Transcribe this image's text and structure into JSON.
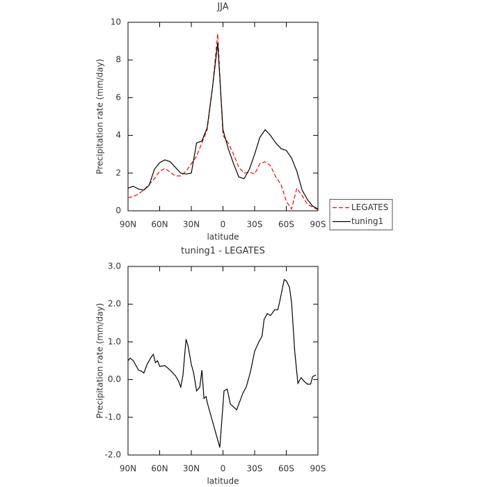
{
  "chart_data": [
    {
      "type": "line",
      "title": "JJA",
      "xlabel": "latitude",
      "ylabel": "Precipitation rate (mm/day)",
      "x": [
        90,
        85,
        80,
        75,
        70,
        65,
        60,
        55,
        50,
        45,
        40,
        35,
        30,
        25,
        20,
        15,
        10,
        5,
        0,
        -5,
        -10,
        -15,
        -20,
        -25,
        -30,
        -35,
        -40,
        -45,
        -50,
        -55,
        -60,
        -65,
        -70,
        -75,
        -80,
        -85,
        -90
      ],
      "series": [
        {
          "name": "LEGATES",
          "color": "#ff0000",
          "dashed": true,
          "values": [
            0.7,
            0.75,
            0.9,
            1.1,
            1.4,
            1.7,
            2.1,
            2.25,
            2.05,
            1.85,
            1.85,
            2.1,
            2.5,
            2.9,
            3.6,
            4.3,
            6.5,
            9.4,
            4.0,
            3.6,
            3.0,
            2.3,
            2.0,
            2.05,
            1.95,
            2.5,
            2.6,
            2.4,
            1.8,
            1.4,
            0.5,
            0.1,
            1.2,
            0.8,
            0.35,
            0.2,
            0.05
          ]
        },
        {
          "name": "tuning1",
          "color": "#000000",
          "dashed": false,
          "values": [
            1.2,
            1.3,
            1.15,
            1.1,
            1.35,
            2.2,
            2.55,
            2.7,
            2.6,
            2.3,
            2.0,
            1.95,
            2.0,
            3.6,
            3.7,
            4.4,
            6.5,
            8.9,
            4.3,
            3.3,
            2.5,
            1.8,
            1.7,
            2.2,
            3.0,
            3.9,
            4.3,
            4.0,
            3.6,
            3.3,
            3.2,
            2.8,
            2.1,
            1.1,
            0.6,
            0.25,
            0.1
          ]
        }
      ],
      "xlim": [
        90,
        -90
      ],
      "xticks": [
        {
          "value": 90,
          "label": "90N"
        },
        {
          "value": 60,
          "label": "60N"
        },
        {
          "value": 30,
          "label": "30N"
        },
        0,
        {
          "value": -30,
          "label": "30S"
        },
        {
          "value": -60,
          "label": "60S"
        },
        {
          "value": -90,
          "label": "90S"
        }
      ],
      "ylim": [
        0,
        10
      ],
      "yticks": [
        0,
        2,
        4,
        6,
        8,
        10
      ],
      "legend": "right"
    },
    {
      "type": "line",
      "title": "tuning1 - LEGATES",
      "xlabel": "latitude",
      "ylabel": "Precipitation rate (mm/day)",
      "x": [
        90,
        88,
        85,
        80,
        77,
        75,
        72,
        68,
        66,
        64,
        62,
        60,
        55,
        50,
        45,
        42,
        40,
        38,
        35,
        33,
        30,
        28,
        25,
        22,
        20,
        18,
        16,
        15,
        3,
        -1,
        -4,
        -7,
        -13,
        -19,
        -22,
        -26,
        -30,
        -34,
        -37,
        -39,
        -42,
        -45,
        -49,
        -52,
        -54,
        -58,
        -60,
        -63,
        -65,
        -68,
        -71,
        -74,
        -77,
        -80,
        -83,
        -85,
        -88
      ],
      "values": [
        0.5,
        0.57,
        0.5,
        0.25,
        0.22,
        0.17,
        0.4,
        0.6,
        0.67,
        0.45,
        0.5,
        0.35,
        0.37,
        0.25,
        0.1,
        -0.05,
        -0.2,
        0.1,
        1.07,
        0.88,
        0.4,
        0.2,
        -0.3,
        -0.2,
        0.25,
        -0.5,
        -0.45,
        -0.6,
        -1.8,
        -0.3,
        -0.25,
        -0.65,
        -0.8,
        -0.35,
        -0.2,
        0.2,
        0.75,
        1.0,
        1.15,
        1.6,
        1.75,
        1.7,
        1.85,
        1.85,
        2.1,
        2.65,
        2.62,
        2.45,
        2.05,
        0.75,
        -0.1,
        0.05,
        -0.05,
        -0.12,
        -0.12,
        0.08,
        0.12
      ],
      "color": "#000000",
      "xlim": [
        90,
        -90
      ],
      "xticks": [
        {
          "value": 90,
          "label": "90N"
        },
        {
          "value": 60,
          "label": "60N"
        },
        {
          "value": 30,
          "label": "30N"
        },
        0,
        {
          "value": -30,
          "label": "30S"
        },
        {
          "value": -60,
          "label": "60S"
        },
        {
          "value": -90,
          "label": "90S"
        }
      ],
      "ylim": [
        -2,
        3
      ],
      "yticks": [
        {
          "value": -2,
          "label": "-2.0"
        },
        {
          "value": -1,
          "label": "-1.0"
        },
        {
          "value": 0,
          "label": "0.0"
        },
        {
          "value": 1,
          "label": "1.0"
        },
        {
          "value": 2,
          "label": "2.0"
        },
        {
          "value": 3,
          "label": "3.0"
        }
      ]
    }
  ]
}
